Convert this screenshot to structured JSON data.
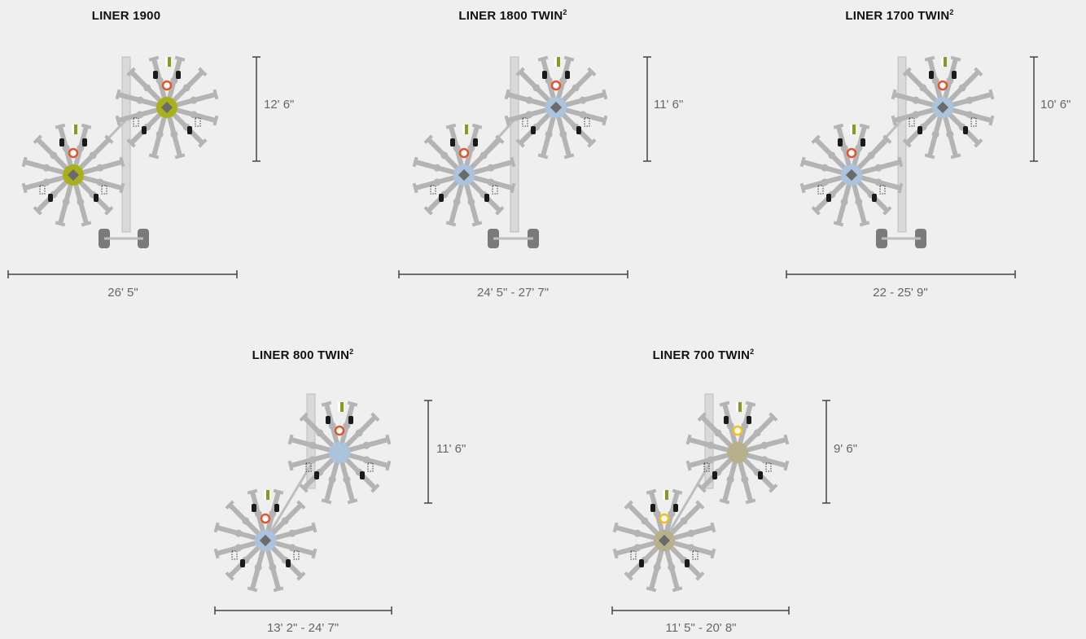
{
  "colors": {
    "background": "#efefef",
    "frame": "#d9d9d9",
    "frame_outline": "#bdbdbd",
    "tine_arm": "#b4b4b4",
    "hub_green": "#a8b01c",
    "hub_blue": "#a9c4dc",
    "hub_tan": "#b8b08a",
    "hub_center": "#6b6b6b",
    "marker_red": "#e0552b",
    "marker_yellow": "#f2c21a",
    "flag_green": "#8a9a1e",
    "tire": "#7a7a7a",
    "dimension_line": "#444444",
    "dimension_text": "#666666"
  },
  "models": [
    {
      "id": "liner-1900",
      "title": "LINER 1900",
      "superscript": "",
      "hub_color": "hub_green",
      "marker_color": "marker_red",
      "height_label": "12' 6\"",
      "width_label": "26' 5\"",
      "wheels": true
    },
    {
      "id": "liner-1800",
      "title": "LINER 1800 TWIN",
      "superscript": "2",
      "hub_color": "hub_blue",
      "marker_color": "marker_red",
      "height_label": "11' 6\"",
      "width_label": "24' 5\" - 27' 7\"",
      "wheels": true
    },
    {
      "id": "liner-1700",
      "title": "LINER 1700 TWIN",
      "superscript": "2",
      "hub_color": "hub_blue",
      "marker_color": "marker_red",
      "height_label": "10' 6\"",
      "width_label": "22 - 25' 9\"",
      "wheels": true
    },
    {
      "id": "liner-800",
      "title": "LINER 800 TWIN",
      "superscript": "2",
      "hub_color": "hub_blue",
      "marker_color": "marker_red",
      "height_label": "11' 6\"",
      "width_label": "13' 2\" - 24' 7\"",
      "wheels": false
    },
    {
      "id": "liner-700",
      "title": "LINER 700 TWIN",
      "superscript": "2",
      "hub_color": "hub_tan",
      "marker_color": "marker_yellow",
      "height_label": "9' 6\"",
      "width_label": "11' 5\" - 20' 8\"",
      "wheels": false
    }
  ]
}
